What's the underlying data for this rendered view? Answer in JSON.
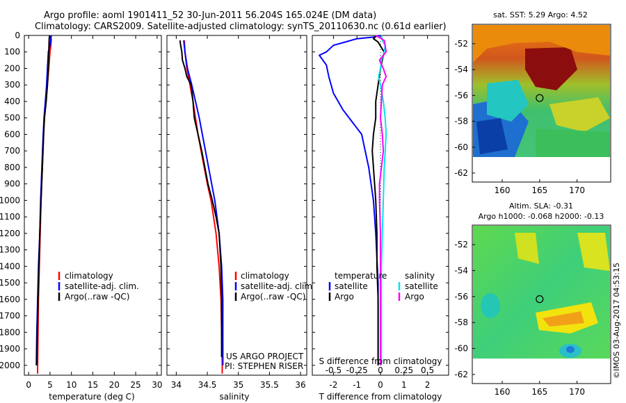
{
  "header": {
    "title_line1": "Argo profile: aoml 1901411_52 30-Jun-2011 56.204S 165.024E (DM data)",
    "title_line2": "Climatology: CARS2009. Satellite-adjusted climatology: synTS_20110630.nc (0.61d earlier)"
  },
  "colors": {
    "climatology": "#ff0000",
    "satellite": "#0000ff",
    "argo": "#000000",
    "salinity_satellite": "#00e5ee",
    "salinity_argo": "#ff00ff"
  },
  "legend": {
    "climatology": "climatology",
    "satellite_clim": "satellite-adj. clim.",
    "argo_raw": "Argo(..raw -QC)",
    "temperature": "temperature",
    "salinity": "salinity",
    "satellite": "satellite",
    "argo": "Argo"
  },
  "credits": {
    "project": "US ARGO PROJECT",
    "pi": "PI: STEPHEN RISER"
  },
  "watermark": "©IMOS 03-Aug-2017 04:53:15",
  "depth_ticks": [
    "0",
    "100",
    "200",
    "300",
    "400",
    "500",
    "600",
    "700",
    "800",
    "900",
    "1000",
    "1100",
    "1200",
    "1300",
    "1400",
    "1500",
    "1600",
    "1700",
    "1800",
    "1900",
    "2000"
  ],
  "chart_data": [
    {
      "type": "line",
      "xlabel": "temperature (deg C)",
      "ylabel": "",
      "xlim": [
        -1,
        31
      ],
      "ylim": [
        2060,
        0
      ],
      "xticks": [
        "0",
        "5",
        "10",
        "15",
        "20",
        "25",
        "30"
      ],
      "legend_position": "center-right",
      "series": [
        {
          "name": "climatology",
          "color": "#ff0000",
          "depth": [
            20,
            60,
            100,
            200,
            300,
            400,
            500,
            600,
            800,
            1000,
            1200,
            1400,
            1600,
            1800,
            2000,
            2050
          ],
          "values": [
            5.3,
            5.2,
            5.0,
            4.7,
            4.4,
            4.0,
            3.7,
            3.5,
            3.2,
            2.9,
            2.7,
            2.5,
            2.3,
            2.2,
            2.1,
            2.1
          ]
        },
        {
          "name": "satellite-adj. clim.",
          "color": "#0000ff",
          "depth": [
            0,
            20,
            60,
            100,
            200,
            300,
            400,
            500,
            600,
            800,
            1000,
            1200,
            1400,
            1600,
            1800,
            2000
          ],
          "values": [
            5.3,
            5.2,
            5.0,
            4.6,
            4.4,
            4.2,
            3.9,
            3.6,
            3.4,
            3.1,
            2.8,
            2.6,
            2.3,
            2.1,
            1.9,
            1.8
          ]
        },
        {
          "name": "Argo(..raw -QC)",
          "color": "#000000",
          "depth": [
            0,
            20,
            100,
            200,
            300,
            400,
            500,
            600,
            800,
            1000,
            1200,
            1400,
            1600,
            1800,
            2000
          ],
          "values": [
            4.9,
            4.8,
            4.7,
            4.6,
            4.4,
            4.1,
            3.7,
            3.5,
            3.2,
            2.9,
            2.6,
            2.4,
            2.2,
            2.0,
            1.9
          ]
        }
      ]
    },
    {
      "type": "line",
      "xlabel": "salinity",
      "ylabel": "",
      "xlim": [
        33.85,
        36.1
      ],
      "ylim": [
        2060,
        0
      ],
      "xticks": [
        "34",
        "34.5",
        "35",
        "35.5",
        "36"
      ],
      "legend_position": "center-right",
      "series": [
        {
          "name": "climatology",
          "color": "#ff0000",
          "depth": [
            30,
            100,
            200,
            300,
            400,
            500,
            600,
            700,
            800,
            900,
            1000,
            1200,
            1400,
            1600,
            1800,
            2000,
            2050
          ],
          "values": [
            34.13,
            34.14,
            34.17,
            34.22,
            34.27,
            34.31,
            34.35,
            34.4,
            34.45,
            34.5,
            34.56,
            34.64,
            34.69,
            34.72,
            34.73,
            34.74,
            34.74
          ]
        },
        {
          "name": "satellite-adj. clim.",
          "color": "#0000ff",
          "depth": [
            30,
            100,
            200,
            300,
            400,
            500,
            600,
            700,
            800,
            900,
            1000,
            1200,
            1400,
            1600,
            1800,
            2000
          ],
          "values": [
            34.12,
            34.14,
            34.18,
            34.25,
            34.31,
            34.37,
            34.42,
            34.47,
            34.52,
            34.57,
            34.62,
            34.69,
            34.73,
            34.75,
            34.75,
            34.75
          ]
        },
        {
          "name": "Argo(..raw -QC)",
          "color": "#000000",
          "depth": [
            30,
            60,
            100,
            150,
            200,
            250,
            300,
            400,
            500,
            600,
            700,
            800,
            900,
            1000,
            1100,
            1200,
            1400,
            1600,
            1800,
            1950
          ],
          "values": [
            34.06,
            34.07,
            34.09,
            34.1,
            34.14,
            34.17,
            34.24,
            34.27,
            34.29,
            34.35,
            34.41,
            34.46,
            34.51,
            34.58,
            34.64,
            34.69,
            34.72,
            34.73,
            34.73,
            34.73
          ]
        }
      ]
    },
    {
      "type": "line",
      "xlabel": "T difference from climatology",
      "xlabel_secondary": "S difference from climatology",
      "xlim": [
        -2.9,
        2.9
      ],
      "ylim": [
        2060,
        0
      ],
      "xticks": [
        "-2",
        "-1",
        "0",
        "1",
        "2"
      ],
      "xticks_secondary": [
        "-0.5",
        "-0.25",
        "0",
        "0.25",
        "0.5"
      ],
      "zero_line": "dotted",
      "legend_position": "center",
      "series": [
        {
          "name": "temperature satellite",
          "color": "#0000ff",
          "axis": "T",
          "depth": [
            0,
            10,
            20,
            40,
            60,
            100,
            120,
            180,
            250,
            350,
            450,
            600,
            800,
            1000,
            1200,
            1500,
            1800,
            2000
          ],
          "values": [
            0.0,
            -0.3,
            -1.0,
            -1.5,
            -2.0,
            -2.3,
            -2.6,
            -2.3,
            -2.2,
            -2.0,
            -1.6,
            -0.8,
            -0.5,
            -0.3,
            -0.2,
            -0.1,
            -0.1,
            -0.1
          ]
        },
        {
          "name": "temperature Argo",
          "color": "#000000",
          "axis": "T",
          "depth": [
            0,
            20,
            40,
            100,
            200,
            300,
            400,
            500,
            600,
            700,
            800,
            1000,
            1200,
            1400,
            1600,
            1800,
            2000
          ],
          "values": [
            -0.15,
            -0.3,
            -0.1,
            0.15,
            0.0,
            -0.1,
            -0.2,
            -0.2,
            -0.3,
            -0.35,
            -0.3,
            -0.2,
            -0.15,
            -0.15,
            -0.1,
            -0.1,
            -0.1
          ]
        },
        {
          "name": "salinity satellite",
          "color": "#00e5ee",
          "axis": "S",
          "depth": [
            0,
            30,
            60,
            100,
            150,
            200,
            250,
            300,
            400,
            500,
            600,
            700,
            800,
            1000,
            1200,
            1400,
            1600,
            1800,
            2000
          ],
          "values": [
            0.01,
            0.02,
            0.05,
            0.04,
            0.01,
            0.0,
            -0.02,
            0.0,
            0.03,
            0.05,
            0.06,
            0.05,
            0.04,
            0.03,
            0.02,
            0.01,
            0.01,
            0.01,
            0.01
          ]
        },
        {
          "name": "salinity Argo",
          "color": "#ff00ff",
          "axis": "S",
          "depth": [
            0,
            30,
            60,
            100,
            150,
            200,
            250,
            300,
            400,
            500,
            600,
            700,
            800,
            900,
            1000,
            1200,
            1400,
            1600,
            1800,
            2000
          ],
          "values": [
            -0.05,
            0.04,
            0.05,
            0.06,
            -0.01,
            0.03,
            0.06,
            0.02,
            0.01,
            0.0,
            0.02,
            0.03,
            0.01,
            -0.01,
            -0.01,
            0.0,
            0.0,
            0.0,
            0.0,
            0.0
          ]
        }
      ]
    },
    {
      "type": "heatmap",
      "title": "sat. SST: 5.29  Argo: 4.52",
      "xticks": [
        "160",
        "165",
        "170"
      ],
      "yticks": [
        "-52",
        "-54",
        "-56",
        "-58",
        "-60",
        "-62"
      ],
      "xlim": [
        156,
        174.5
      ],
      "ylim": [
        -62.7,
        -50.5
      ],
      "marker": {
        "lon": 165.0,
        "lat": -56.2
      }
    },
    {
      "type": "heatmap",
      "title": "Altim. SLA: -0.31",
      "subtitle": "Argo h1000: -0.068 h2000: -0.13",
      "xticks": [
        "160",
        "165",
        "170"
      ],
      "yticks": [
        "-52",
        "-54",
        "-56",
        "-58",
        "-60",
        "-62"
      ],
      "xlim": [
        156,
        174.5
      ],
      "ylim": [
        -62.7,
        -50.5
      ],
      "marker": {
        "lon": 165.0,
        "lat": -56.2
      }
    }
  ]
}
